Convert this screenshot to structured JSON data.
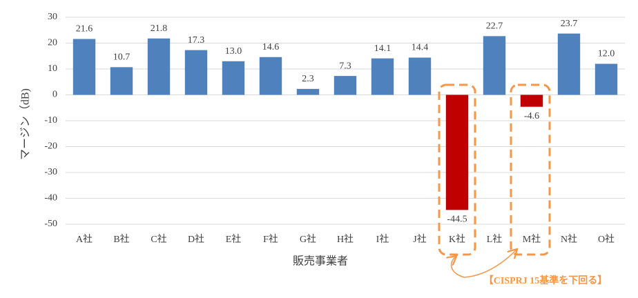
{
  "chart_data": {
    "type": "bar",
    "y_label": "マージン（dB)",
    "x_label": "販売事業者",
    "annotation": "【CISPRJ 15基準を下回る】",
    "categories": [
      "A社",
      "B社",
      "C社",
      "D社",
      "E社",
      "F社",
      "G社",
      "H社",
      "I社",
      "J社",
      "K社",
      "L社",
      "M社",
      "N社",
      "O社"
    ],
    "values": [
      21.6,
      10.7,
      21.8,
      17.3,
      13.0,
      14.6,
      2.3,
      7.3,
      14.1,
      14.4,
      -44.5,
      22.7,
      -4.6,
      23.7,
      12.0
    ],
    "value_labels": [
      "21.6",
      "10.7",
      "21.8",
      "17.3",
      "13.0",
      "14.6",
      "2.3",
      "7.3",
      "14.1",
      "14.4",
      "-44.5",
      "22.7",
      "-4.6",
      "23.7",
      "12.0"
    ],
    "colors": [
      "#4f81bd",
      "#4f81bd",
      "#4f81bd",
      "#4f81bd",
      "#4f81bd",
      "#4f81bd",
      "#4f81bd",
      "#4f81bd",
      "#4f81bd",
      "#4f81bd",
      "#c00000",
      "#4f81bd",
      "#c00000",
      "#4f81bd",
      "#4f81bd"
    ],
    "ylim": [
      -50,
      30
    ],
    "yticks": [
      -50,
      -40,
      -30,
      -20,
      -10,
      0,
      10,
      20,
      30
    ],
    "grid": true
  }
}
